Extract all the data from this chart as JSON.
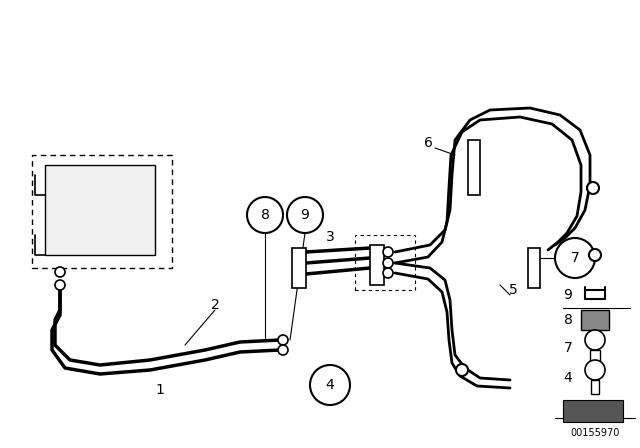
{
  "bg_color": "#ffffff",
  "line_color": "#000000",
  "fig_width": 6.4,
  "fig_height": 4.48,
  "dpi": 100,
  "watermark": "00155970"
}
